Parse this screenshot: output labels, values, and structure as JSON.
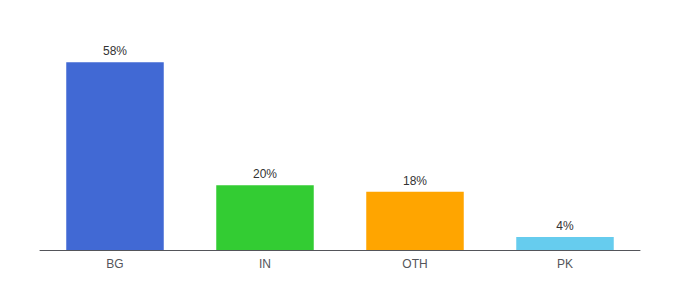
{
  "chart_data": {
    "type": "bar",
    "categories": [
      "BG",
      "IN",
      "OTH",
      "PK"
    ],
    "values": [
      58,
      20,
      18,
      4
    ],
    "value_labels": [
      "58%",
      "20%",
      "18%",
      "4%"
    ],
    "colors": [
      "#4169D4",
      "#33CC33",
      "#FFA500",
      "#66CCEE"
    ],
    "ylim": [
      0,
      68
    ],
    "data_labels": true,
    "tick_labels": "x",
    "grid": false
  }
}
